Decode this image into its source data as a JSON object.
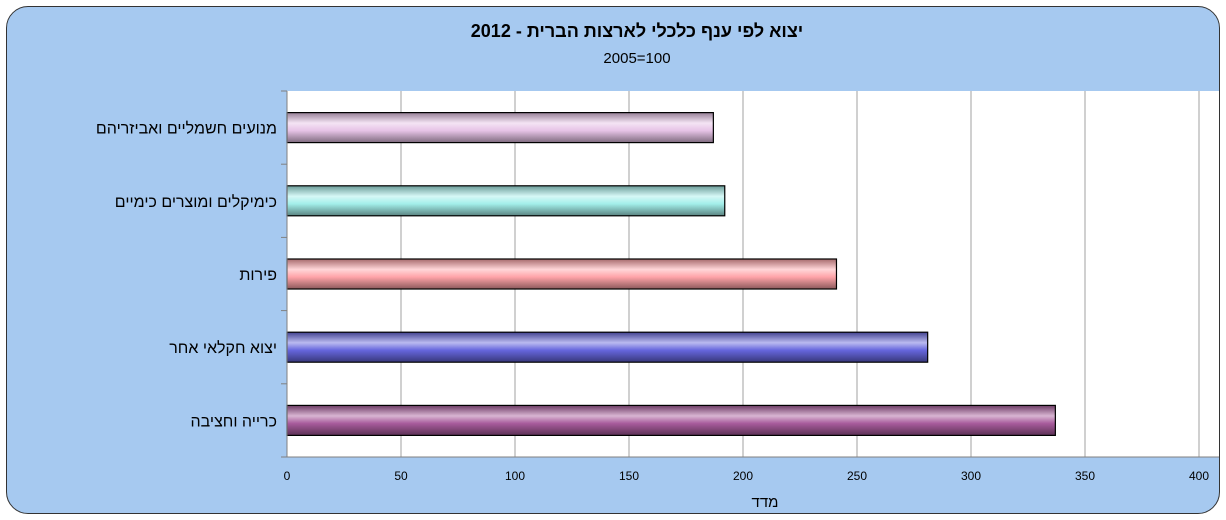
{
  "chart_data": {
    "type": "bar",
    "orientation": "horizontal",
    "title": "יצוא לפי ענף כלכלי לארצות הברית - 2012",
    "subtitle": "2005=100",
    "xlabel": "מדד",
    "ylabel": "",
    "xlim": [
      0,
      400
    ],
    "xticks": [
      "0",
      "50",
      "100",
      "150",
      "200",
      "250",
      "300",
      "350",
      "400"
    ],
    "grid": true,
    "categories": [
      "מנועים חשמליים ואביזריהם",
      "כימיקלים ומוצרים כימיים",
      "פירות",
      "יצוא חקלאי אחר",
      "כרייה וחציבה"
    ],
    "values": [
      187,
      192,
      241,
      281,
      337
    ],
    "colors": [
      "#e6c3e6",
      "#a3efea",
      "#ffa3a8",
      "#6666dd",
      "#a85b9c"
    ]
  }
}
